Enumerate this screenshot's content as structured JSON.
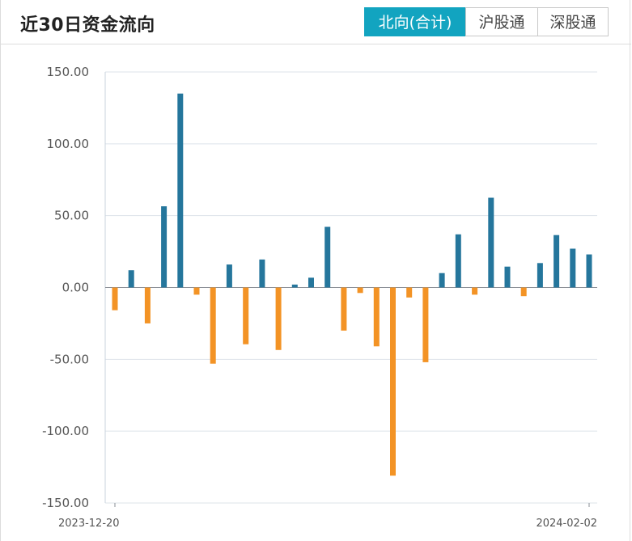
{
  "header": {
    "title": "近30日资金流向",
    "tabs": [
      {
        "label": "北向(合计)",
        "active": true
      },
      {
        "label": "沪股通",
        "active": false
      },
      {
        "label": "深股通",
        "active": false
      }
    ]
  },
  "colors": {
    "positive": "#25769c",
    "negative": "#f39325",
    "accent": "#12a4c0",
    "grid": "#dde3ea"
  },
  "chart_data": {
    "type": "bar",
    "title": "",
    "xlabel": "",
    "ylabel": "",
    "ylim": [
      -150,
      150
    ],
    "yticks": [
      "150.00",
      "100.00",
      "50.00",
      "0.00",
      "-50.00",
      "-100.00",
      "-150.00"
    ],
    "ytick_values": [
      150,
      100,
      50,
      0,
      -50,
      -100,
      -150
    ],
    "x_tick_labels": [
      "2023-12-20",
      "2024-02-02"
    ],
    "grid": true,
    "values": [
      -15.8,
      12.0,
      -25.0,
      56.5,
      135.0,
      -5.0,
      -53.0,
      16.0,
      -39.5,
      19.5,
      -43.5,
      2.0,
      6.8,
      42.2,
      -30.0,
      -3.8,
      -41.0,
      -131.0,
      -7.0,
      -52.0,
      10.0,
      37.0,
      -5.0,
      62.5,
      14.5,
      -6.0,
      17.0,
      36.5,
      27.0,
      23.0
    ]
  }
}
